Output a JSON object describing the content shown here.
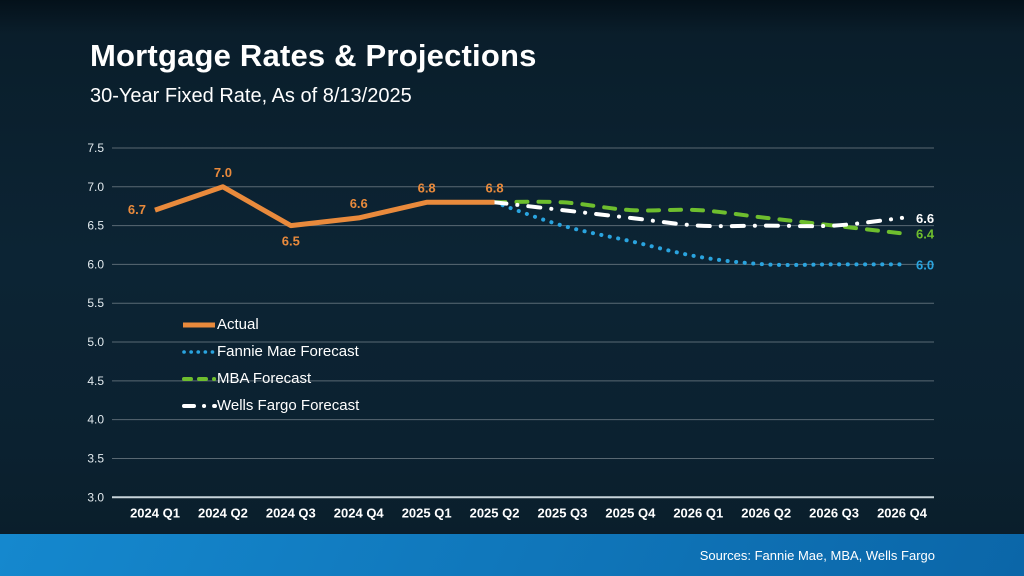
{
  "chart_data": {
    "type": "line",
    "title": "Mortgage Rates & Projections",
    "subtitle": "30-Year Fixed Rate, As of 8/13/2025",
    "categories": [
      "2024 Q1",
      "2024 Q2",
      "2024 Q3",
      "2024 Q4",
      "2025 Q1",
      "2025 Q2",
      "2025 Q3",
      "2025 Q4",
      "2026 Q1",
      "2026 Q2",
      "2026 Q3",
      "2026 Q4"
    ],
    "ylim": [
      3.0,
      7.5
    ],
    "ytick_step": 0.5,
    "grid": true,
    "legend_position": "middle-left",
    "series": [
      {
        "name": "Actual",
        "color": "#E98A3C",
        "style": "solid",
        "smooth": false,
        "start_index": 0,
        "values": [
          6.7,
          7.0,
          6.5,
          6.6,
          6.8,
          6.8
        ],
        "point_labels": [
          "6.7",
          "7.0",
          "6.5",
          "6.6",
          "6.8",
          "6.8"
        ],
        "label_positions": [
          "left",
          "above",
          "below",
          "above",
          "above",
          "above"
        ]
      },
      {
        "name": "Fannie Mae Forecast",
        "color": "#2AA4DF",
        "style": "dotted",
        "smooth": true,
        "start_index": 5,
        "values": [
          6.8,
          6.5,
          6.3,
          6.1,
          6.0,
          6.0,
          6.0
        ],
        "end_label": "6.0"
      },
      {
        "name": "MBA Forecast",
        "color": "#6EBE2E",
        "style": "dashed",
        "smooth": true,
        "start_index": 5,
        "values": [
          6.8,
          6.8,
          6.7,
          6.7,
          6.6,
          6.5,
          6.4
        ],
        "end_label": "6.4"
      },
      {
        "name": "Wells Fargo Forecast",
        "color": "#FFFFFF",
        "style": "dashdot",
        "smooth": true,
        "start_index": 5,
        "values": [
          6.8,
          6.7,
          6.6,
          6.5,
          6.5,
          6.5,
          6.6
        ],
        "end_label": "6.6"
      }
    ]
  },
  "footer": {
    "sources": "Sources: Fannie Mae, MBA, Wells Fargo"
  },
  "colors": {
    "background": "#0C2434",
    "footer_gradient": [
      "#1588CE",
      "#0B66A8"
    ],
    "grid": "rgba(255,255,255,0.32)",
    "axis": "#C8D4DA",
    "y_tick_label": "#E2EAEE",
    "x_tick_label": "#FFFFFF",
    "title_text": "#FFFFFF"
  }
}
